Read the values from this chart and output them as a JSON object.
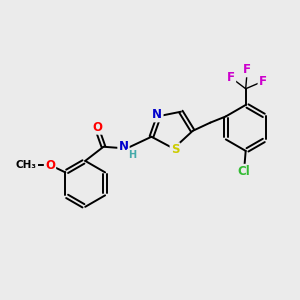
{
  "bg_color": "#ebebeb",
  "bond_color": "#000000",
  "atom_colors": {
    "O": "#ff0000",
    "N": "#0000cc",
    "S": "#cccc00",
    "Cl": "#33bb33",
    "F": "#cc00cc",
    "C": "#000000",
    "H": "#44aaaa"
  },
  "figsize": [
    3.0,
    3.0
  ],
  "dpi": 100
}
